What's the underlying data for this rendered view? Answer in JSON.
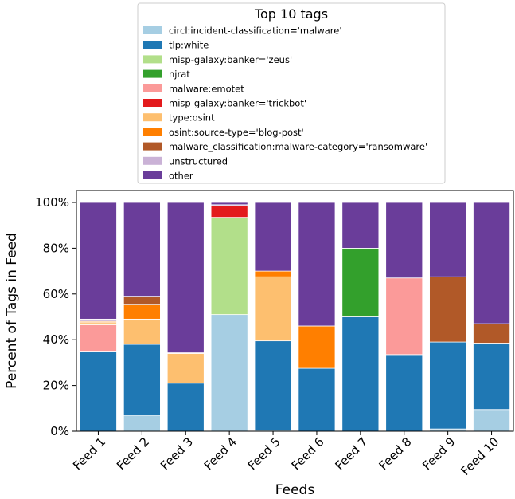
{
  "chart_data": {
    "type": "bar",
    "stacked": true,
    "title": "",
    "xlabel": "Feeds",
    "ylabel": "Percent of Tags in Feed",
    "ylim": [
      0,
      100
    ],
    "yticks": [
      "0%",
      "20%",
      "40%",
      "60%",
      "80%",
      "100%"
    ],
    "grid": false,
    "legend": {
      "title": "Top 10 tags",
      "placement": "top-center"
    },
    "categories": [
      "Feed 1",
      "Feed 2",
      "Feed 3",
      "Feed 4",
      "Feed 5",
      "Feed 6",
      "Feed 7",
      "Feed 8",
      "Feed 9",
      "Feed 10"
    ],
    "series": [
      {
        "name": "circl:incident-classification='malware'",
        "color": "#a6cee3",
        "values": [
          0,
          7,
          0,
          51,
          0.5,
          0,
          0,
          0,
          1,
          9.5
        ]
      },
      {
        "name": "tlp:white",
        "color": "#1f78b4",
        "values": [
          35,
          31,
          21,
          0,
          39,
          27.5,
          50,
          33.5,
          38,
          29
        ]
      },
      {
        "name": "misp-galaxy:banker='zeus'",
        "color": "#b2df8a",
        "values": [
          0,
          0,
          0,
          42.5,
          0,
          0,
          0,
          0,
          0,
          0
        ]
      },
      {
        "name": "njrat",
        "color": "#33a02c",
        "values": [
          0,
          0,
          0,
          0,
          0,
          0,
          30,
          0,
          0,
          0
        ]
      },
      {
        "name": "malware:emotet",
        "color": "#fb9a99",
        "values": [
          11.5,
          0,
          0,
          0,
          0,
          0,
          0,
          33.5,
          0,
          0
        ]
      },
      {
        "name": "misp-galaxy:banker='trickbot'",
        "color": "#e31a1c",
        "values": [
          0,
          0,
          0,
          5,
          0,
          0,
          0,
          0,
          0,
          0
        ]
      },
      {
        "name": "type:osint",
        "color": "#fdbf6f",
        "values": [
          1,
          11,
          13,
          0,
          28,
          0,
          0,
          0,
          0,
          0
        ]
      },
      {
        "name": "osint:source-type='blog-post'",
        "color": "#ff7f00",
        "values": [
          0.5,
          6.5,
          0,
          0,
          2.5,
          18.5,
          0,
          0,
          0,
          0
        ]
      },
      {
        "name": "malware_classification:malware-category='ransomware'",
        "color": "#b15928",
        "values": [
          0,
          3.5,
          0,
          0,
          0,
          0,
          0,
          0,
          28.5,
          8.5
        ]
      },
      {
        "name": "unstructured",
        "color": "#cab2d6",
        "values": [
          1,
          0,
          0.5,
          0.5,
          0,
          0,
          0,
          0,
          0,
          0
        ]
      },
      {
        "name": "other",
        "color": "#6a3d9a",
        "values": [
          51,
          41,
          65.5,
          1,
          30,
          54,
          20,
          33,
          32.5,
          53
        ]
      }
    ]
  }
}
